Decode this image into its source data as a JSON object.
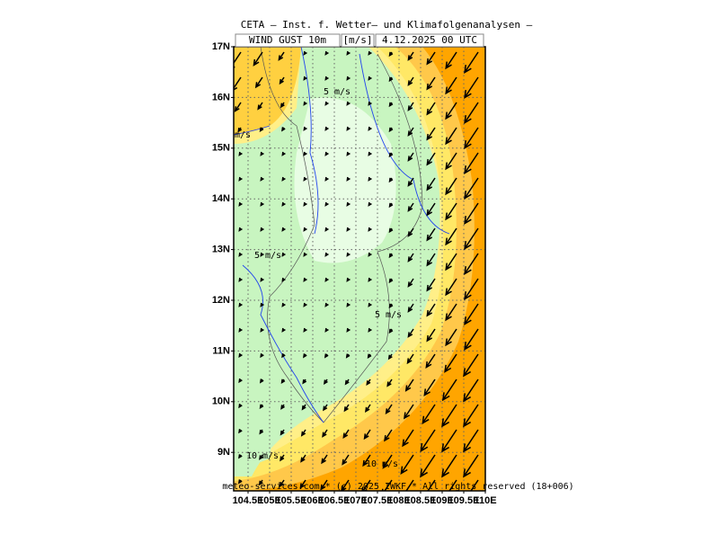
{
  "header": {
    "title": "CETA — Inst. f. Wetter— und Klimafolgenanalysen —",
    "field": "WIND GUST 10m",
    "unit": "[m/s]",
    "time": "4.12.2025 00 UTC"
  },
  "map": {
    "lat_ticks": [
      {
        "value": 17,
        "label": "17N"
      },
      {
        "value": 16,
        "label": "16N"
      },
      {
        "value": 15,
        "label": "15N"
      },
      {
        "value": 14,
        "label": "14N"
      },
      {
        "value": 13,
        "label": "13N"
      },
      {
        "value": 12,
        "label": "12N"
      },
      {
        "value": 11,
        "label": "11N"
      },
      {
        "value": 10,
        "label": "10N"
      },
      {
        "value": 9,
        "label": "9N"
      }
    ],
    "lon_ticks": [
      {
        "value": 104.5,
        "label": "104.5E"
      },
      {
        "value": 105,
        "label": "105E"
      },
      {
        "value": 105.5,
        "label": "105.5E"
      },
      {
        "value": 106,
        "label": "106E"
      },
      {
        "value": 106.5,
        "label": "106.5E"
      },
      {
        "value": 107,
        "label": "107E"
      },
      {
        "value": 107.5,
        "label": "107.5E"
      },
      {
        "value": 108,
        "label": "108E"
      },
      {
        "value": 108.5,
        "label": "108.5E"
      },
      {
        "value": 109,
        "label": "109E"
      },
      {
        "value": 109.5,
        "label": "109.5E"
      },
      {
        "value": 110,
        "label": "110E"
      }
    ],
    "contour_labels": [
      "5 m/s",
      "m/s",
      "5 m/s",
      "5 m/s",
      "10 m/s",
      "10 m/s"
    ],
    "footer": "meteo-services.com * (c) 2025 IWKF * All rights reserved (18+006)"
  }
}
